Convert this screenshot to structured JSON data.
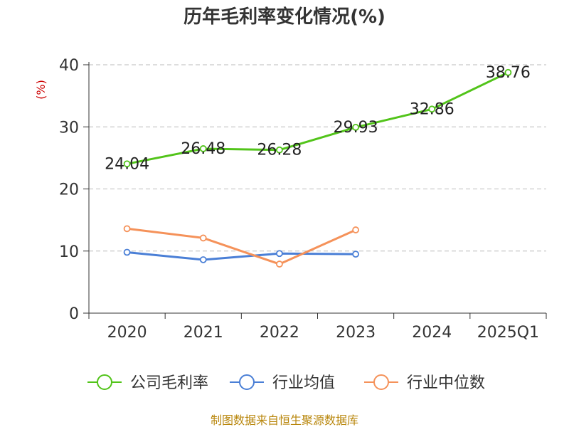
{
  "chart_data": {
    "type": "line",
    "title": "历年毛利率变化情况(%)",
    "ylabel": "(%)",
    "categories": [
      "2020",
      "2021",
      "2022",
      "2023",
      "2024",
      "2025Q1"
    ],
    "ylim": [
      0,
      40
    ],
    "yticks": [
      0,
      10,
      20,
      30,
      40
    ],
    "grid": true,
    "legend_position": "bottom",
    "series": [
      {
        "name": "公司毛利率",
        "color": "#52c41a",
        "values": [
          24.04,
          26.48,
          26.28,
          29.93,
          32.86,
          38.76
        ],
        "labels": [
          "24.04",
          "26.48",
          "26.28",
          "29.93",
          "32.86",
          "38.76"
        ]
      },
      {
        "name": "行业均值",
        "color": "#4a7fd6",
        "values": [
          9.8,
          8.6,
          9.6,
          9.5,
          null,
          null
        ]
      },
      {
        "name": "行业中位数",
        "color": "#f5925a",
        "values": [
          13.6,
          12.1,
          7.9,
          13.4,
          null,
          null
        ]
      }
    ],
    "source": "制图数据来自恒生聚源数据库"
  }
}
